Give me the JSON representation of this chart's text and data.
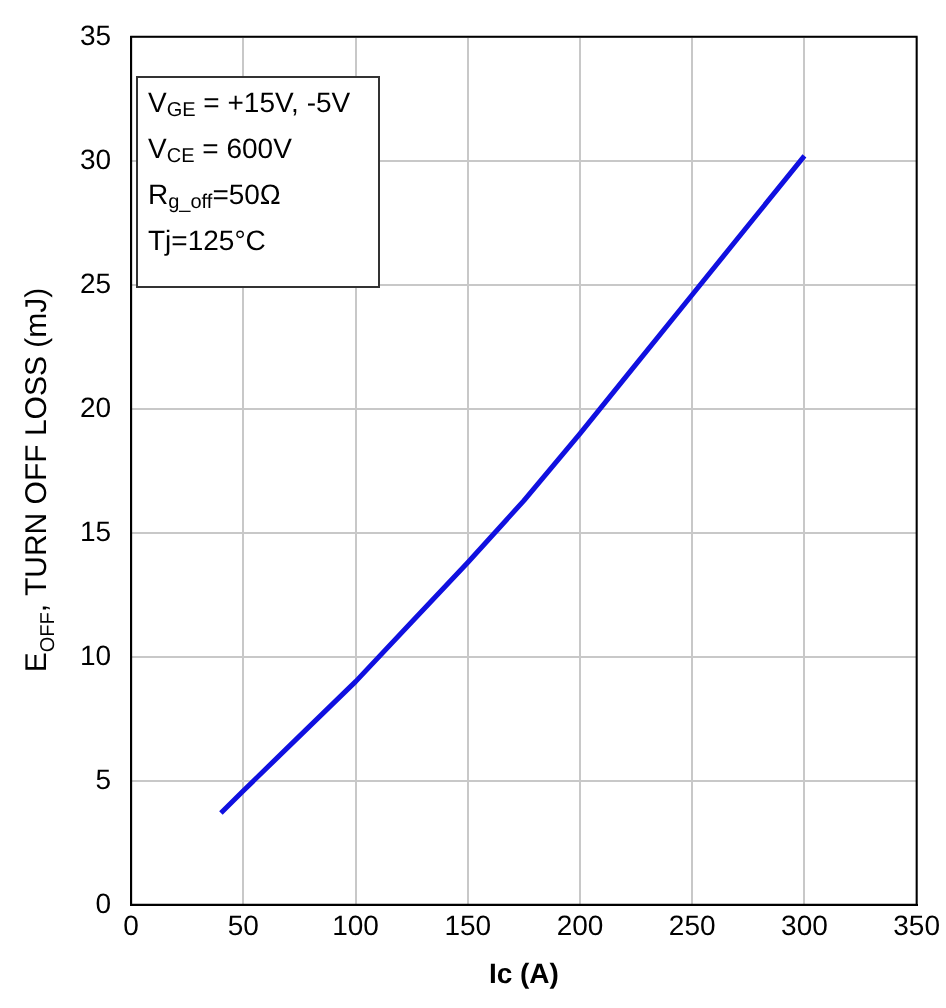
{
  "chart_data": {
    "type": "line",
    "xlabel": "Ic (A)",
    "ylabel": "E$_{OFF}$, TURN OFF LOSS (mJ)",
    "x": [
      40,
      50,
      75,
      100,
      125,
      150,
      175,
      200,
      225,
      250,
      275,
      300
    ],
    "series": [
      {
        "color": "#1010e0",
        "values": [
          3.7,
          4.6,
          6.8,
          9.0,
          11.4,
          13.8,
          16.3,
          19.0,
          21.8,
          24.6,
          27.4,
          30.2
        ]
      }
    ],
    "xlim": [
      0,
      350
    ],
    "xticks": [
      0,
      50,
      100,
      150,
      200,
      250,
      300,
      350
    ],
    "ylim": [
      0,
      35
    ],
    "yticks": [
      0,
      5,
      10,
      15,
      20,
      25,
      30,
      35
    ],
    "grid": true,
    "legend": false,
    "marker": "none",
    "line_style": "solid",
    "annotations": [
      "V$_{GE}$ = +15V, -5V",
      "V$_{CE}$ = 600V",
      "R$_{g_off}$=50Ω",
      "Tj=125°C"
    ]
  }
}
